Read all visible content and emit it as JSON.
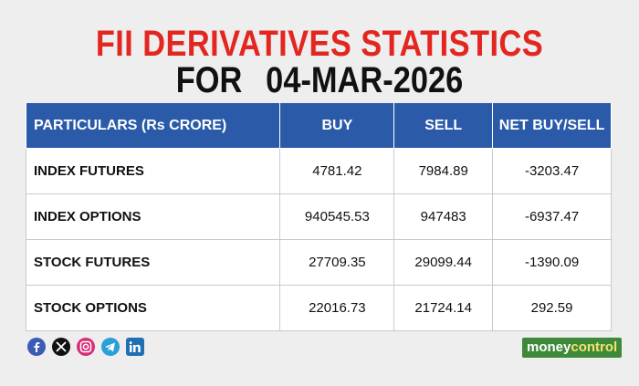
{
  "header": {
    "title_line1": "FII DERIVATIVES STATISTICS",
    "title_prefix": "FOR",
    "date": "04-MAR-2026"
  },
  "table": {
    "columns": [
      "PARTICULARS (Rs CRORE)",
      "BUY",
      "SELL",
      "NET BUY/SELL"
    ],
    "rows": [
      [
        "INDEX FUTURES",
        "4781.42",
        "7984.89",
        "-3203.47"
      ],
      [
        "INDEX OPTIONS",
        "940545.53",
        "947483",
        "-6937.47"
      ],
      [
        "STOCK FUTURES",
        "27709.35",
        "29099.44",
        "-1390.09"
      ],
      [
        "STOCK OPTIONS",
        "22016.73",
        "21724.14",
        "292.59"
      ]
    ]
  },
  "footer": {
    "logo_part1": "money",
    "logo_part2": "control"
  }
}
